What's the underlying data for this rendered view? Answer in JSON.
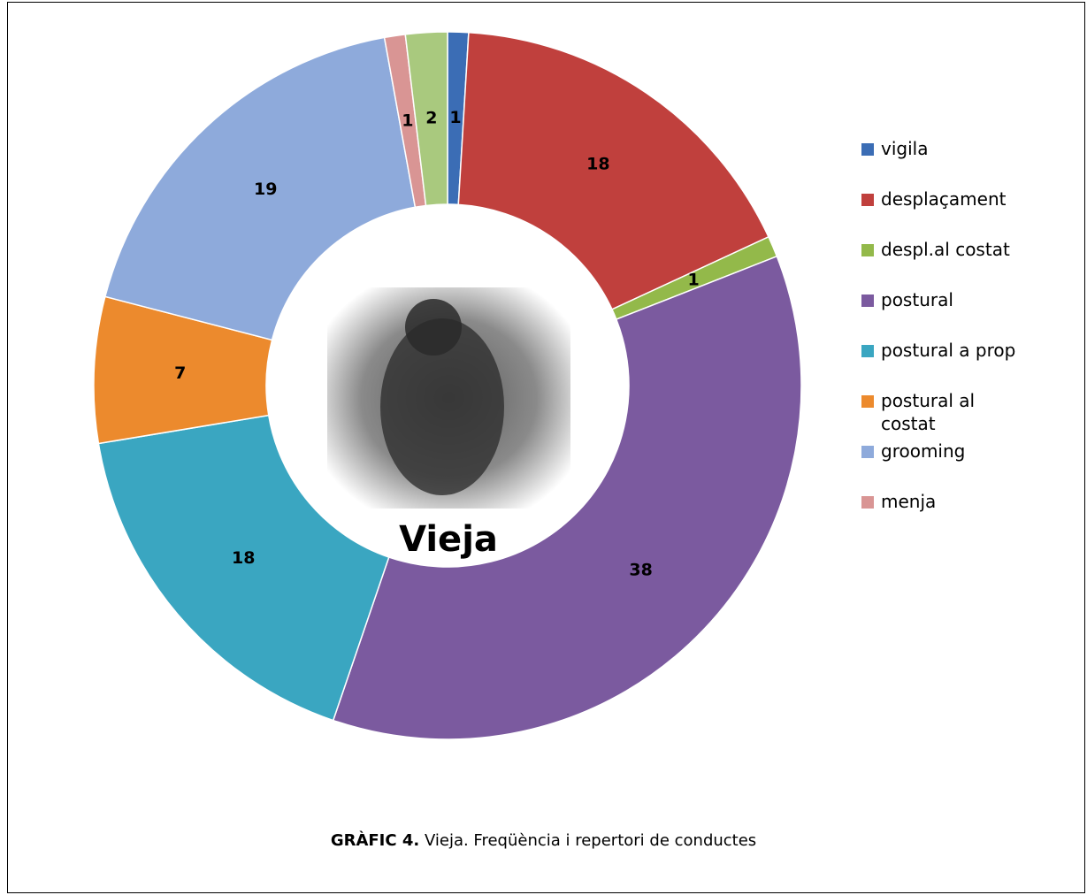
{
  "chart_data": {
    "type": "doughnut",
    "title": "Vieja",
    "caption_label": "GRÀFIC 4.",
    "caption": "Vieja. Freqüència i repertori de conductes",
    "categories": [
      "vigila",
      "desplaçament",
      "despl.al costat",
      "postural",
      "postural a prop",
      "postural al costat",
      "grooming",
      "menja",
      null
    ],
    "values": [
      1,
      18,
      1,
      38,
      18,
      7,
      19,
      1,
      2
    ],
    "colors": [
      "#3b6db5",
      "#c0403d",
      "#93b94a",
      "#7b5a9f",
      "#3aa6c1",
      "#ec8a2d",
      "#8eaadb",
      "#d99594",
      "#a9c97e"
    ],
    "legend": "right"
  }
}
